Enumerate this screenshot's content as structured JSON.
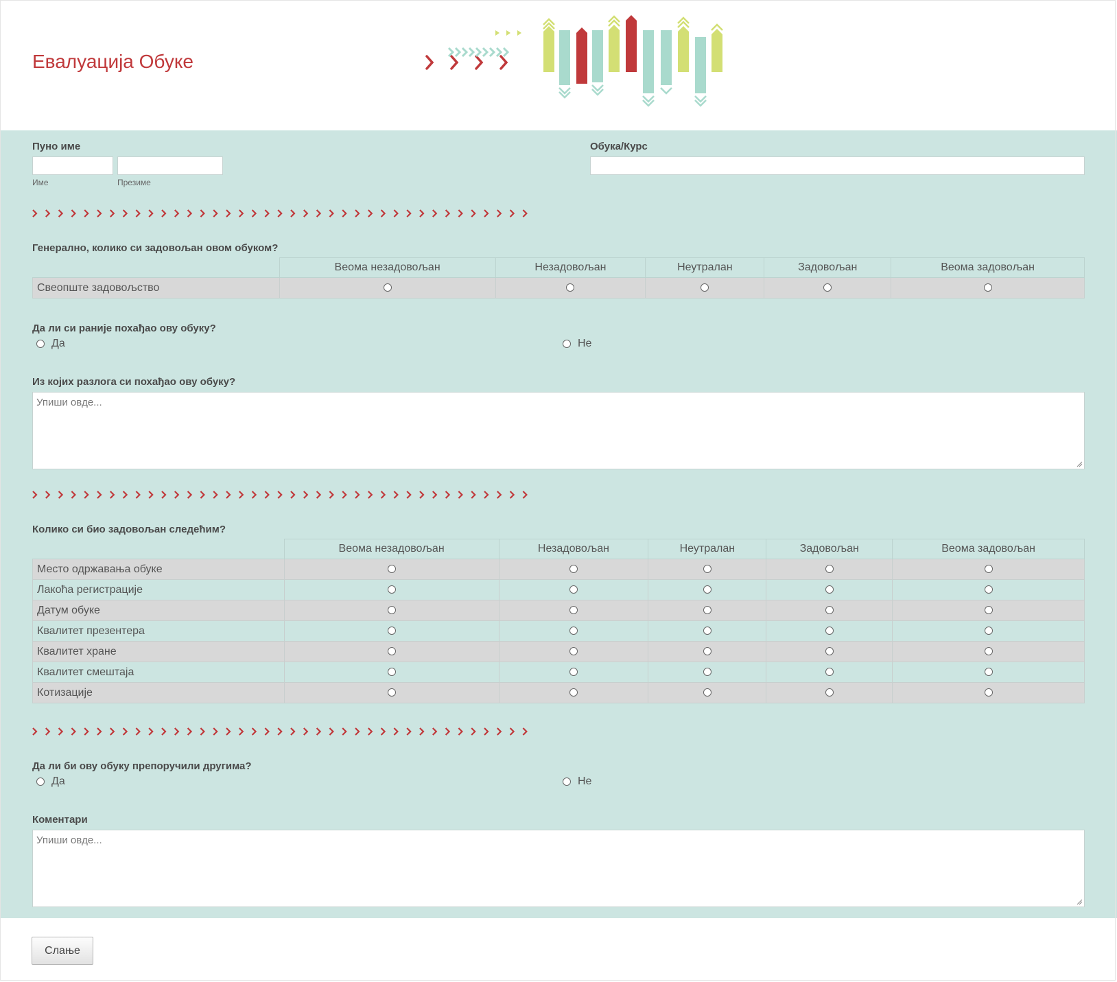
{
  "header": {
    "title": "Евалуација Обуке"
  },
  "name_field": {
    "label": "Пуно име",
    "first_sublabel": "Име",
    "last_sublabel": "Презиме"
  },
  "course_field": {
    "label": "Обука/Курс"
  },
  "q1": {
    "question": "Генерално, колико си задовољан овом обуком?",
    "columns": [
      "Веома незадовољан",
      "Незадовољан",
      "Неутралан",
      "Задовољан",
      "Веома задовољан"
    ],
    "rows": [
      "Свеопште задовољство"
    ]
  },
  "q2": {
    "question": "Да ли си раније похађао ову обуку?",
    "options": [
      "Да",
      "Не"
    ]
  },
  "q3": {
    "question": "Из којих разлога си похађао ову обуку?",
    "placeholder": "Упиши овде..."
  },
  "q4": {
    "question": "Колико си био задовољан следећим?",
    "columns": [
      "Веома незадовољан",
      "Незадовољан",
      "Неутралан",
      "Задовољан",
      "Веома задовољан"
    ],
    "rows": [
      "Место одржавања обуке",
      "Лакоћа регистрације",
      "Датум обуке",
      "Квалитет презентера",
      "Квалитет хране",
      "Квалитет смештаја",
      "Котизације"
    ]
  },
  "q5": {
    "question": "Да ли би ову обуку препоручили другима?",
    "options": [
      "Да",
      "Не"
    ]
  },
  "q6": {
    "question": "Коментари",
    "placeholder": "Упиши овде..."
  },
  "submit": {
    "label": "Слање"
  },
  "colors": {
    "accent": "#c0393b",
    "form_bg": "#cce5e1",
    "row_gray": "#d8d8d8",
    "art_teal": "#a9dacd",
    "art_lime": "#d3df74"
  }
}
